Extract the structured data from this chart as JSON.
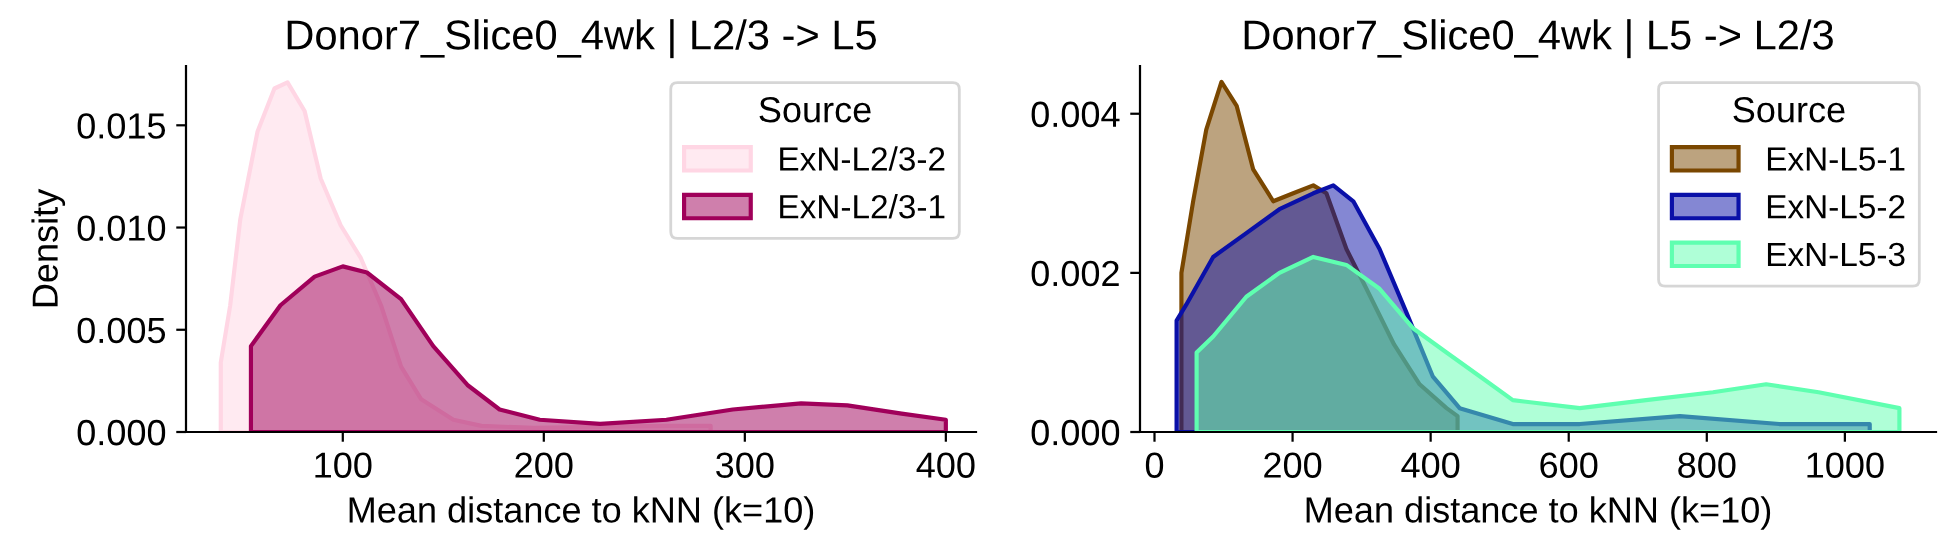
{
  "chart_data": [
    {
      "type": "area",
      "title": "Donor7_Slice0_4wk | L2/3 -> L5",
      "xlabel": "Mean distance to kNN (k=10)",
      "ylabel": "Density",
      "legend_title": "Source",
      "legend": "top right",
      "grid": false,
      "xlim": [
        22,
        415
      ],
      "xticks": [
        100,
        200,
        300,
        400
      ],
      "ylim": [
        0,
        0.0179
      ],
      "yticks": [
        {
          "value": 0,
          "label": "0.000"
        },
        {
          "value": 0.005,
          "label": "0.005"
        },
        {
          "value": 0.01,
          "label": "0.010"
        },
        {
          "value": 0.015,
          "label": "0.015"
        }
      ],
      "series": [
        {
          "name": "ExN-L2/3-2",
          "color": "#ffd6e4",
          "x": [
            39.3,
            44,
            49,
            57.6,
            66,
            72.5,
            81,
            89,
            99,
            109,
            119,
            129,
            139,
            155,
            169,
            195,
            261,
            283
          ],
          "values": [
            0.0034,
            0.0062,
            0.0104,
            0.0147,
            0.0168,
            0.0171,
            0.0157,
            0.0124,
            0.0101,
            0.0085,
            0.0062,
            0.0032,
            0.0016,
            0.0006,
            0.0003,
            0.0002,
            0.0003,
            0.0003
          ]
        },
        {
          "name": "ExN-L2/3-1",
          "color": "#a0005a",
          "x": [
            54.3,
            69,
            86,
            100,
            112,
            129,
            145,
            162,
            178,
            198,
            228,
            261,
            294,
            328,
            351,
            378,
            400
          ],
          "values": [
            0.0042,
            0.0062,
            0.0076,
            0.0081,
            0.0078,
            0.0065,
            0.0042,
            0.0023,
            0.0011,
            0.0006,
            0.0004,
            0.0006,
            0.0011,
            0.0014,
            0.0013,
            0.0009,
            0.0006
          ]
        }
      ]
    },
    {
      "type": "area",
      "title": "Donor7_Slice0_4wk | L5 -> L2/3",
      "xlabel": "Mean distance to kNN (k=10)",
      "legend_title": "Source",
      "legend": "top right",
      "grid": false,
      "xlim": [
        -21,
        1132
      ],
      "xticks": [
        0,
        200,
        400,
        600,
        800,
        1000
      ],
      "ylim": [
        0,
        0.0046
      ],
      "yticks": [
        {
          "value": 0,
          "label": "0.000"
        },
        {
          "value": 0.002,
          "label": "0.002"
        },
        {
          "value": 0.004,
          "label": "0.004"
        }
      ],
      "series": [
        {
          "name": "ExN-L5-1",
          "color": "#7a4700",
          "x": [
            39,
            56,
            75,
            97,
            119,
            143,
            172,
            201,
            230,
            249,
            278,
            307,
            347,
            384,
            423,
            439
          ],
          "values": [
            0.002,
            0.0029,
            0.0038,
            0.0044,
            0.0041,
            0.0033,
            0.0029,
            0.003,
            0.0031,
            0.003,
            0.0023,
            0.0018,
            0.0011,
            0.0006,
            0.0003,
            0.0002
          ]
        },
        {
          "name": "ExN-L5-2",
          "color": "#0a10a8",
          "x": [
            32,
            46,
            85,
            133,
            181,
            230,
            259,
            288,
            326,
            365,
            403,
            442,
            519,
            616,
            761,
            905,
            1036
          ],
          "values": [
            0.0014,
            0.0016,
            0.0022,
            0.0025,
            0.0028,
            0.003,
            0.0031,
            0.0029,
            0.0023,
            0.0015,
            0.0007,
            0.0003,
            0.0001,
            0.0001,
            0.0002,
            0.0001,
            0.0001
          ]
        },
        {
          "name": "ExN-L5-3",
          "color": "#5fffb0",
          "x": [
            61,
            85,
            133,
            181,
            230,
            278,
            326,
            375,
            423,
            471,
            519,
            616,
            712,
            809,
            886,
            962,
            1079
          ],
          "values": [
            0.001,
            0.0012,
            0.0017,
            0.002,
            0.0022,
            0.0021,
            0.0018,
            0.0013,
            0.001,
            0.0007,
            0.0004,
            0.0003,
            0.0004,
            0.0005,
            0.0006,
            0.0005,
            0.0003
          ]
        }
      ]
    }
  ]
}
